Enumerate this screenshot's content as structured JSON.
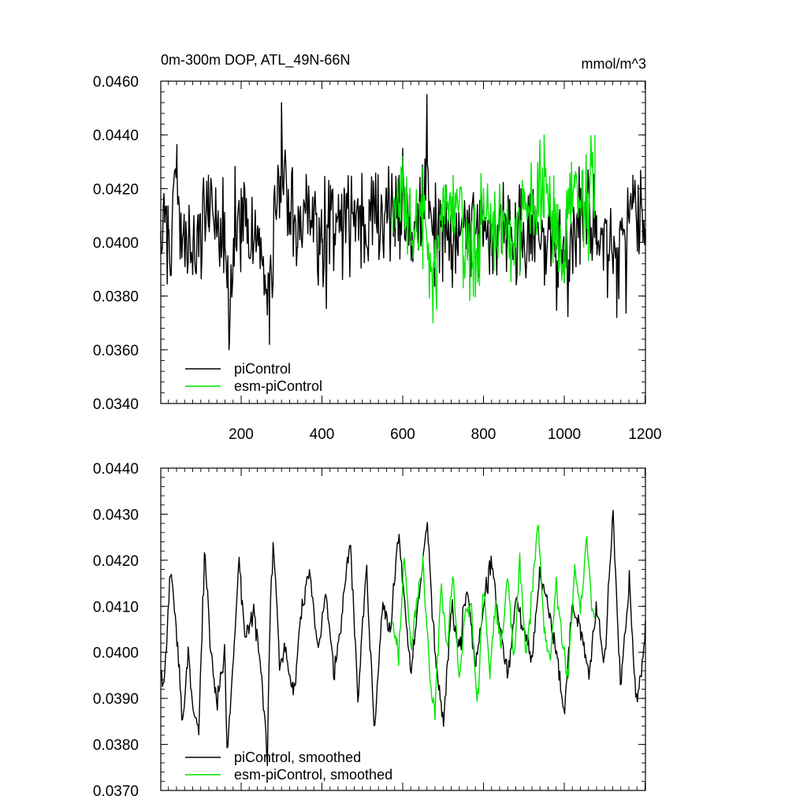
{
  "chart_data": [
    {
      "type": "line",
      "title": "0m-300m DOP, ATL_49N-66N",
      "units": "mmol/m^3",
      "xlim": [
        1,
        1201
      ],
      "ylim": [
        0.034,
        0.046
      ],
      "xticks": [
        200,
        400,
        600,
        800,
        1000,
        1200
      ],
      "xtick_labels": [
        "200",
        "400",
        "600",
        "800",
        "1000",
        "1200"
      ],
      "yticks": [
        0.034,
        0.036,
        0.038,
        0.04,
        0.042,
        0.044,
        0.046
      ],
      "ytick_labels": [
        "0.0340",
        "0.0360",
        "0.0380",
        "0.0400",
        "0.0420",
        "0.0440",
        "0.0460"
      ],
      "legend_position": "bottom-left",
      "grid": false,
      "series": [
        {
          "name": "piControl",
          "color": "#000000",
          "x_range": [
            1,
            1201
          ],
          "mean": 0.0405,
          "std": 0.0013,
          "x": [
            1,
            20,
            41,
            60,
            80,
            100,
            119,
            140,
            160,
            170,
            200,
            240,
            270,
            300,
            340,
            360,
            400,
            440,
            480,
            520,
            560,
            580,
            600,
            620,
            640,
            660,
            680,
            700,
            720,
            760,
            800,
            840,
            880,
            920,
            960,
            1000,
            1040,
            1080,
            1110,
            1130,
            1170,
            1201
          ],
          "y": [
            0.04,
            0.0405,
            0.043,
            0.0395,
            0.0388,
            0.04,
            0.0425,
            0.0402,
            0.0398,
            0.036,
            0.042,
            0.0405,
            0.0362,
            0.0452,
            0.0398,
            0.0412,
            0.04,
            0.041,
            0.0415,
            0.0408,
            0.042,
            0.0415,
            0.0435,
            0.04,
            0.041,
            0.0455,
            0.0398,
            0.0405,
            0.039,
            0.0412,
            0.04,
            0.0415,
            0.0395,
            0.041,
            0.0405,
            0.0385,
            0.042,
            0.041,
            0.0395,
            0.0372,
            0.0425,
            0.04
          ]
        },
        {
          "name": "esm-piControl",
          "color": "#00e600",
          "x_range": [
            576,
            1076
          ],
          "mean": 0.0407,
          "std": 0.0013,
          "x": [
            576,
            600,
            625,
            650,
            675,
            700,
            725,
            750,
            775,
            800,
            825,
            850,
            875,
            900,
            925,
            950,
            975,
            1000,
            1025,
            1050,
            1076
          ],
          "y": [
            0.0408,
            0.0432,
            0.04,
            0.0428,
            0.037,
            0.0415,
            0.0425,
            0.0395,
            0.038,
            0.042,
            0.0405,
            0.0412,
            0.0398,
            0.042,
            0.041,
            0.044,
            0.04,
            0.0385,
            0.0425,
            0.0415,
            0.044
          ]
        }
      ]
    },
    {
      "type": "line",
      "xlim": [
        1,
        1201
      ],
      "ylim": [
        0.037,
        0.044
      ],
      "xticks": [
        200,
        400,
        600,
        800,
        1000,
        1200
      ],
      "yticks": [
        0.037,
        0.038,
        0.039,
        0.04,
        0.041,
        0.042,
        0.043,
        0.044
      ],
      "ytick_labels": [
        "0.0370",
        "0.0380",
        "0.0390",
        "0.0400",
        "0.0410",
        "0.0420",
        "0.0430",
        "0.0440"
      ],
      "legend_position": "bottom-left",
      "grid": false,
      "series": [
        {
          "name": "piControl, smoothed",
          "color": "#000000",
          "x": [
            1,
            10,
            25,
            40,
            55,
            70,
            80,
            95,
            110,
            125,
            140,
            160,
            165,
            180,
            195,
            210,
            230,
            250,
            265,
            270,
            280,
            295,
            310,
            330,
            350,
            370,
            390,
            410,
            430,
            450,
            470,
            490,
            510,
            530,
            550,
            570,
            590,
            620,
            640,
            660,
            680,
            700,
            720,
            740,
            760,
            780,
            800,
            820,
            840,
            860,
            880,
            900,
            920,
            940,
            960,
            980,
            1000,
            1020,
            1040,
            1060,
            1080,
            1100,
            1120,
            1140,
            1160,
            1180,
            1201
          ],
          "y": [
            0.0395,
            0.0393,
            0.0418,
            0.0405,
            0.0385,
            0.04,
            0.0387,
            0.0384,
            0.0422,
            0.04,
            0.039,
            0.04,
            0.0379,
            0.0398,
            0.0421,
            0.0402,
            0.041,
            0.0395,
            0.0376,
            0.0405,
            0.0425,
            0.0398,
            0.04,
            0.039,
            0.041,
            0.0418,
            0.04,
            0.0412,
            0.0395,
            0.0408,
            0.0425,
            0.039,
            0.0418,
            0.0383,
            0.041,
            0.0405,
            0.0425,
            0.0395,
            0.0412,
            0.0428,
            0.04,
            0.0383,
            0.041,
            0.04,
            0.0415,
            0.0397,
            0.041,
            0.042,
            0.0405,
            0.0395,
            0.0412,
            0.0405,
            0.0398,
            0.0418,
            0.041,
            0.04,
            0.0387,
            0.041,
            0.0405,
            0.0395,
            0.041,
            0.0398,
            0.043,
            0.0392,
            0.0415,
            0.0388,
            0.0405
          ]
        },
        {
          "name": "esm-piControl, smoothed",
          "color": "#00e600",
          "x": [
            576,
            590,
            605,
            620,
            635,
            650,
            665,
            680,
            695,
            710,
            725,
            740,
            755,
            770,
            785,
            800,
            815,
            830,
            845,
            860,
            875,
            890,
            905,
            920,
            935,
            950,
            965,
            980,
            995,
            1010,
            1025,
            1040,
            1055,
            1070,
            1076
          ],
          "y": [
            0.0405,
            0.04,
            0.042,
            0.04,
            0.0412,
            0.042,
            0.0398,
            0.0387,
            0.0415,
            0.04,
            0.0418,
            0.0393,
            0.0408,
            0.041,
            0.0388,
            0.0415,
            0.0395,
            0.041,
            0.04,
            0.0417,
            0.0398,
            0.042,
            0.04,
            0.0412,
            0.043,
            0.0405,
            0.0398,
            0.0415,
            0.0402,
            0.0395,
            0.0418,
            0.0408,
            0.0425,
            0.041,
            0.0406
          ]
        }
      ]
    }
  ]
}
